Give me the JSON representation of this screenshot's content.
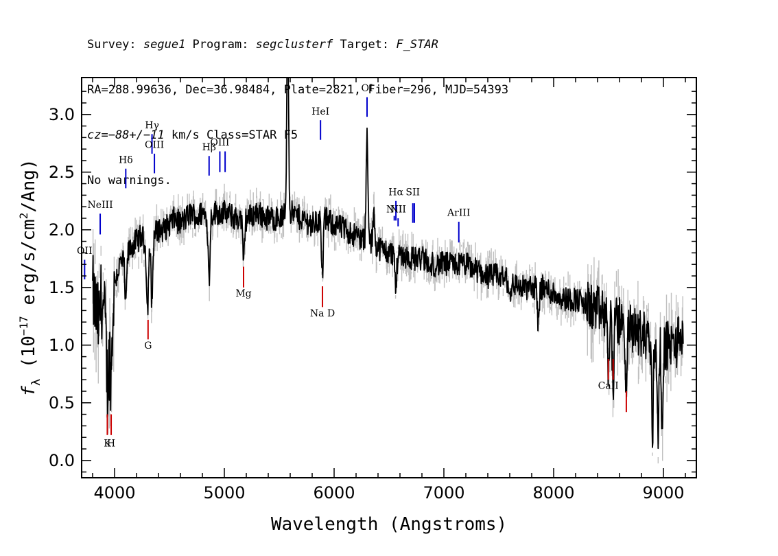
{
  "header": {
    "line1": {
      "survey_label": "Survey: ",
      "survey": "segue1",
      "program_label": " Program: ",
      "program": "segclusterf",
      "target_label": " Target: ",
      "target": "F_STAR"
    },
    "line2": "RA=288.99636, Dec=36.98484, Plate=2821, Fiber=296, MJD=54393",
    "line3": {
      "cz": "cz=−88+/−11",
      "rest": " km/s Class=STAR F5"
    },
    "line4": "No warnings."
  },
  "chart_data": {
    "type": "line",
    "xlabel": "Wavelength (Angstroms)",
    "ylabel": "f_λ (10^-17 erg/s/cm^2/Ang)",
    "ylabel_parts": {
      "f": "f",
      "sub": "λ",
      "pre": " (10",
      "exp": "−17",
      "mid": " erg/s/cm",
      "exp2": "2",
      "post": "/Ang)"
    },
    "xlim": [
      3700,
      9300
    ],
    "ylim": [
      -0.15,
      3.32
    ],
    "x_ticks": [
      4000,
      5000,
      6000,
      7000,
      8000,
      9000
    ],
    "y_ticks": [
      0.0,
      0.5,
      1.0,
      1.5,
      2.0,
      2.5,
      3.0
    ],
    "x_tick_labels": [
      "4000",
      "5000",
      "6000",
      "7000",
      "8000",
      "9000"
    ],
    "y_tick_labels": [
      "0.0",
      "0.5",
      "1.0",
      "1.5",
      "2.0",
      "2.5",
      "3.0"
    ],
    "series": [
      {
        "name": "",
        "style": "flux",
        "x": [
          3800,
          3850,
          3900,
          3950,
          4000,
          4050,
          4100,
          4150,
          4200,
          4250,
          4300,
          4350,
          4400,
          4450,
          4500,
          4550,
          4600,
          4650,
          4700,
          4750,
          4800,
          4850,
          4900,
          4950,
          5000,
          5100,
          5200,
          5300,
          5400,
          5500,
          5600,
          5700,
          5800,
          5900,
          6000,
          6100,
          6200,
          6300,
          6400,
          6500,
          6600,
          6700,
          6800,
          6900,
          7000,
          7100,
          7200,
          7300,
          7400,
          7500,
          7600,
          7700,
          7800,
          7900,
          8000,
          8100,
          8200,
          8300,
          8400,
          8500,
          8600,
          8700,
          8800,
          8900,
          9000,
          9100,
          9180
        ],
        "y": [
          1.45,
          1.2,
          1.3,
          0.9,
          1.55,
          1.7,
          1.75,
          1.85,
          1.9,
          1.95,
          1.8,
          1.95,
          2.0,
          2.0,
          2.05,
          2.1,
          2.05,
          2.1,
          2.15,
          2.1,
          2.15,
          2.1,
          2.15,
          2.15,
          2.15,
          2.1,
          2.1,
          2.15,
          2.1,
          2.1,
          2.15,
          2.1,
          2.05,
          2.1,
          2.05,
          2.0,
          1.95,
          1.9,
          1.85,
          1.8,
          1.8,
          1.75,
          1.75,
          1.7,
          1.7,
          1.7,
          1.7,
          1.65,
          1.6,
          1.6,
          1.55,
          1.5,
          1.5,
          1.5,
          1.45,
          1.4,
          1.4,
          1.35,
          1.3,
          1.25,
          1.2,
          1.15,
          1.1,
          1.05,
          1.0,
          1.0,
          1.1
        ]
      },
      {
        "name": "",
        "style": "error",
        "x": [
          3800,
          3850,
          3900,
          3950,
          4000,
          4050,
          4100,
          4150,
          4200,
          4250,
          4300,
          4350,
          4400,
          4450,
          4500,
          4550,
          4600,
          4650,
          4700,
          4750,
          4800,
          4850,
          4900,
          4950,
          5000,
          5100,
          5200,
          5300,
          5400,
          5500,
          5600,
          5700,
          5800,
          5900,
          6000,
          6100,
          6200,
          6300,
          6400,
          6500,
          6600,
          6700,
          6800,
          6900,
          7000,
          7100,
          7200,
          7300,
          7400,
          7500,
          7600,
          7700,
          7800,
          7900,
          8000,
          8100,
          8200,
          8300,
          8400,
          8500,
          8600,
          8700,
          8800,
          8900,
          9000,
          9100,
          9180
        ],
        "y": [
          1.45,
          1.2,
          1.3,
          0.9,
          1.55,
          1.7,
          1.75,
          1.85,
          1.9,
          1.95,
          1.8,
          1.95,
          2.0,
          2.0,
          2.05,
          2.1,
          2.05,
          2.1,
          2.15,
          2.1,
          2.15,
          2.1,
          2.15,
          2.15,
          2.15,
          2.1,
          2.1,
          2.15,
          2.1,
          2.1,
          2.15,
          2.1,
          2.05,
          2.1,
          2.05,
          2.0,
          1.95,
          1.9,
          1.85,
          1.8,
          1.8,
          1.75,
          1.75,
          1.7,
          1.7,
          1.7,
          1.7,
          1.65,
          1.6,
          1.6,
          1.55,
          1.5,
          1.5,
          1.5,
          1.45,
          1.4,
          1.4,
          1.35,
          1.3,
          1.25,
          1.2,
          1.15,
          1.1,
          1.05,
          1.0,
          1.0,
          1.1
        ]
      }
    ],
    "features": [
      {
        "x": 3880,
        "y": 1.35,
        "dy": 0.15
      },
      {
        "x": 3934,
        "y": 0.3,
        "dy": -0.35
      },
      {
        "x": 3970,
        "y": 0.4,
        "dy": -0.4
      },
      {
        "x": 4102,
        "y": 1.9,
        "dy": -0.4
      },
      {
        "x": 4300,
        "y": 1.7,
        "dy": -0.5
      },
      {
        "x": 4340,
        "y": 1.75,
        "dy": -0.55
      },
      {
        "x": 4861,
        "y": 1.3,
        "dy": -0.55
      },
      {
        "x": 5175,
        "y": 1.9,
        "dy": -0.4
      },
      {
        "x": 5577,
        "y": 1.6,
        "dy": 1.7
      },
      {
        "x": 5892,
        "y": 1.7,
        "dy": -0.5
      },
      {
        "x": 6300,
        "y": 1.95,
        "dy": 0.9
      },
      {
        "x": 6363,
        "y": 1.9,
        "dy": 0.3
      },
      {
        "x": 6563,
        "y": 1.55,
        "dy": -0.3
      },
      {
        "x": 6870,
        "y": 1.75,
        "dy": -0.1
      },
      {
        "x": 7600,
        "y": 1.55,
        "dy": -0.15
      },
      {
        "x": 7860,
        "y": 1.45,
        "dy": -0.3
      },
      {
        "x": 8498,
        "y": 1.3,
        "dy": -0.45
      },
      {
        "x": 8542,
        "y": 1.3,
        "dy": -0.55
      },
      {
        "x": 8662,
        "y": 1.2,
        "dy": -0.6
      },
      {
        "x": 8900,
        "y": 1.0,
        "dy": -0.8
      },
      {
        "x": 8950,
        "y": 1.1,
        "dy": -0.75
      },
      {
        "x": 8990,
        "y": 1.0,
        "dy": -0.8
      }
    ],
    "emission_lines": [
      {
        "label": "OII",
        "x": 3727,
        "y0": 1.57,
        "y1": 1.74,
        "ly": 1.79
      },
      {
        "label": "NeIII",
        "x": 3869,
        "y0": 1.96,
        "y1": 2.14,
        "ly": 2.19
      },
      {
        "label": "Hδ",
        "x": 4102,
        "y0": 2.36,
        "y1": 2.53,
        "ly": 2.58
      },
      {
        "label": "Hγ",
        "x": 4341,
        "y0": 2.66,
        "y1": 2.83,
        "ly": 2.88
      },
      {
        "label": "OIII",
        "x": 4363,
        "y0": 2.49,
        "y1": 2.66,
        "ly": 2.71
      },
      {
        "label": "Hβ",
        "x": 4861,
        "y0": 2.47,
        "y1": 2.64,
        "ly": 2.69
      },
      {
        "label": "OIII",
        "x": 4959,
        "y0": 2.5,
        "y1": 2.68,
        "ly": 2.73
      },
      {
        "label": "",
        "x": 5007,
        "y0": 2.5,
        "y1": 2.68,
        "ly": 2.73
      },
      {
        "label": "HeI",
        "x": 5876,
        "y0": 2.78,
        "y1": 2.95,
        "ly": 3.0
      },
      {
        "label": "OI",
        "x": 6300,
        "y0": 2.98,
        "y1": 3.15,
        "ly": 3.2
      },
      {
        "label": "NII",
        "x": 6548,
        "y0": 2.08,
        "y1": 2.12,
        "ly": 2.15
      },
      {
        "label": "Hα",
        "x": 6563,
        "y0": 2.08,
        "y1": 2.25,
        "ly": 2.3
      },
      {
        "label": "NII",
        "x": 6583,
        "y0": 2.03,
        "y1": 2.1,
        "ly": 2.15
      },
      {
        "label": "SII",
        "x": 6717,
        "y0": 2.06,
        "y1": 2.23,
        "ly": 2.3
      },
      {
        "label": "",
        "x": 6731,
        "y0": 2.06,
        "y1": 2.23,
        "ly": 2.3
      },
      {
        "label": "ArIII",
        "x": 7136,
        "y0": 1.89,
        "y1": 2.07,
        "ly": 2.12
      }
    ],
    "absorption_lines": [
      {
        "label": "K",
        "x": 3934,
        "y0": 0.22,
        "y1": 0.4,
        "ly": 0.12
      },
      {
        "label": "H",
        "x": 3969,
        "y0": 0.22,
        "y1": 0.4,
        "ly": 0.12
      },
      {
        "label": "G",
        "x": 4305,
        "y0": 1.05,
        "y1": 1.22,
        "ly": 0.97
      },
      {
        "label": "Mg",
        "x": 5175,
        "y0": 1.5,
        "y1": 1.68,
        "ly": 1.42
      },
      {
        "label": "Na D",
        "x": 5894,
        "y0": 1.33,
        "y1": 1.51,
        "ly": 1.25
      },
      {
        "label": "CaII",
        "x": 8498,
        "y0": 0.7,
        "y1": 0.88,
        "ly": 0.62
      },
      {
        "label": "",
        "x": 8542,
        "y0": 0.7,
        "y1": 0.88,
        "ly": 0.62
      },
      {
        "label": "",
        "x": 8662,
        "y0": 0.42,
        "y1": 0.6,
        "ly": 0.62
      }
    ],
    "colors": {
      "flux": "#000000",
      "error": "#c0c0c0",
      "emission": "#0000cc",
      "absorption": "#cc0000",
      "frame": "#000000"
    }
  }
}
